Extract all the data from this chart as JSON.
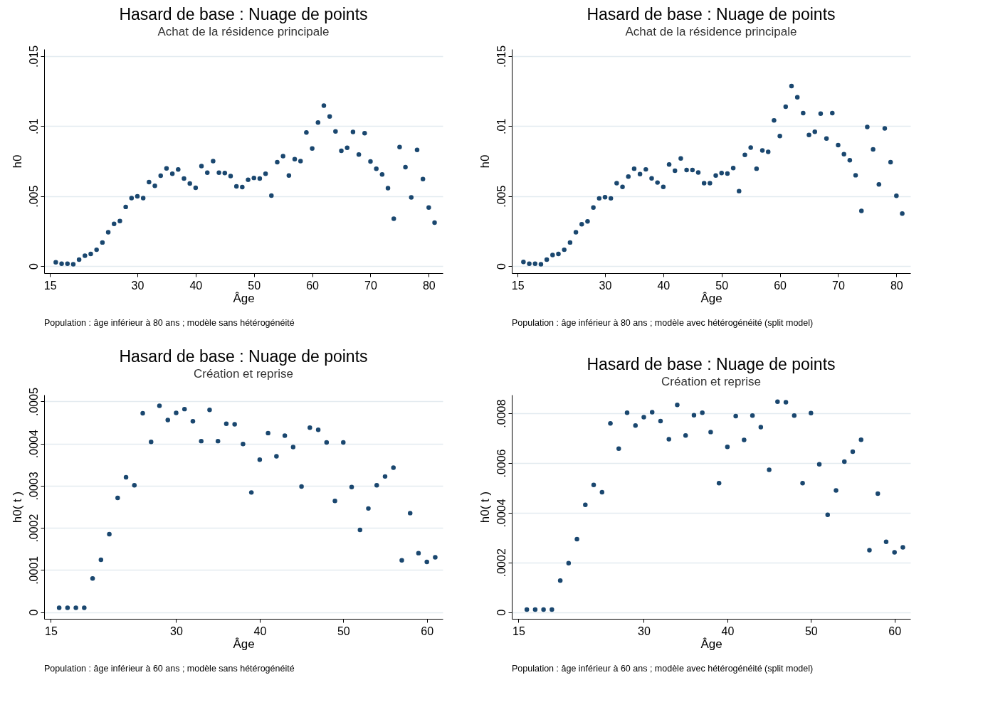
{
  "chart_data": [
    {
      "type": "scatter",
      "title": "Hasard de base : Nuage de points",
      "subtitle": "Achat de la résidence principale",
      "xlabel": "Âge",
      "ylabel": "h0",
      "annotations": [
        "Population : âge inférieur à 80 ans ; modèle sans hétérogénéité"
      ],
      "marker": "circle",
      "grid": "y",
      "xlim": [
        14,
        82.4
      ],
      "xticks": [
        15,
        30,
        40,
        50,
        60,
        70,
        80
      ],
      "ylim": [
        -0.0005,
        0.0155
      ],
      "yticks": [
        {
          "value": 0,
          "label": "0"
        },
        {
          "value": 0.005,
          "label": ".005"
        },
        {
          "value": 0.01,
          "label": ".01"
        },
        {
          "value": 0.015,
          "label": ".015"
        }
      ],
      "x": [
        16,
        17,
        18,
        19,
        20,
        21,
        22,
        23,
        24,
        25,
        26,
        27,
        28,
        29,
        30,
        31,
        32,
        33,
        34,
        35,
        36,
        37,
        38,
        39,
        40,
        41,
        42,
        43,
        44,
        45,
        46,
        47,
        48,
        49,
        50,
        51,
        52,
        53,
        54,
        55,
        56,
        57,
        58,
        59,
        60,
        61,
        62,
        63,
        64,
        65,
        66,
        67,
        68,
        69,
        70,
        71,
        72,
        73,
        74,
        75,
        76,
        77,
        78,
        79,
        80,
        81
      ],
      "series": [
        {
          "color": "#1a476f",
          "values": [
            0.00027,
            0.00017,
            0.00017,
            0.00013,
            0.00047,
            0.00074,
            0.00087,
            0.00117,
            0.00169,
            0.00242,
            0.00302,
            0.00322,
            0.00423,
            0.00486,
            0.00499,
            0.00486,
            0.006,
            0.00573,
            0.00646,
            0.00698,
            0.0066,
            0.0069,
            0.00625,
            0.0059,
            0.0056,
            0.00715,
            0.00668,
            0.0075,
            0.00668,
            0.00665,
            0.00643,
            0.0057,
            0.00565,
            0.00617,
            0.0063,
            0.00625,
            0.0066,
            0.00504,
            0.00742,
            0.00785,
            0.00647,
            0.00764,
            0.0075,
            0.00954,
            0.0084,
            0.01026,
            0.01146,
            0.01069,
            0.00962,
            0.00824,
            0.00845,
            0.00958,
            0.00797,
            0.00949,
            0.00747,
            0.00695,
            0.00655,
            0.00557,
            0.00338,
            0.0085,
            0.00707,
            0.00491,
            0.0083,
            0.00622,
            0.00418,
            0.00311
          ]
        }
      ]
    },
    {
      "type": "scatter",
      "title": "Hasard de base : Nuage de points",
      "subtitle": "Achat de la résidence principale",
      "xlabel": "Âge",
      "ylabel": "h0",
      "annotations": [
        "Population : âge inférieur à 80 ans ; modèle avec hétérogénéité (split model)"
      ],
      "marker": "circle",
      "grid": "y",
      "xlim": [
        14,
        82.4
      ],
      "xticks": [
        15,
        30,
        40,
        50,
        60,
        70,
        80
      ],
      "ylim": [
        -0.0005,
        0.0155
      ],
      "yticks": [
        {
          "value": 0,
          "label": "0"
        },
        {
          "value": 0.005,
          "label": ".005"
        },
        {
          "value": 0.01,
          "label": ".01"
        },
        {
          "value": 0.015,
          "label": ".015"
        }
      ],
      "x": [
        16,
        17,
        18,
        19,
        20,
        21,
        22,
        23,
        24,
        25,
        26,
        27,
        28,
        29,
        30,
        31,
        32,
        33,
        34,
        35,
        36,
        37,
        38,
        39,
        40,
        41,
        42,
        43,
        44,
        45,
        46,
        47,
        48,
        49,
        50,
        51,
        52,
        53,
        54,
        55,
        56,
        57,
        58,
        59,
        60,
        61,
        62,
        63,
        64,
        65,
        66,
        67,
        68,
        69,
        70,
        71,
        72,
        73,
        74,
        75,
        76,
        77,
        78,
        79,
        80,
        81
      ],
      "series": [
        {
          "color": "#1a476f",
          "values": [
            0.0003,
            0.00017,
            0.00017,
            0.00013,
            0.00047,
            0.00079,
            0.00087,
            0.00117,
            0.00169,
            0.00242,
            0.00299,
            0.0032,
            0.00419,
            0.00484,
            0.00492,
            0.00484,
            0.00592,
            0.00566,
            0.00639,
            0.00696,
            0.00657,
            0.00691,
            0.00627,
            0.00597,
            0.00566,
            0.00726,
            0.00682,
            0.00769,
            0.00687,
            0.00687,
            0.00669,
            0.00592,
            0.00592,
            0.00647,
            0.00665,
            0.00661,
            0.00701,
            0.00536,
            0.00794,
            0.00847,
            0.00696,
            0.00826,
            0.00816,
            0.01041,
            0.00929,
            0.01139,
            0.01286,
            0.01206,
            0.01093,
            0.00937,
            0.00959,
            0.01089,
            0.00911,
            0.01093,
            0.00864,
            0.00799,
            0.00756,
            0.00649,
            0.00394,
            0.00994,
            0.00834,
            0.00584,
            0.00984,
            0.00742,
            0.00502,
            0.00375
          ]
        }
      ]
    },
    {
      "type": "scatter",
      "title": "Hasard de base : Nuage de points",
      "subtitle": "Création et reprise",
      "xlabel": "Âge",
      "ylabel": "h0( t )",
      "annotations": [
        "Population : âge inférieur à 60 ans ; modèle sans hétérogénéité"
      ],
      "marker": "circle",
      "grid": "y",
      "xlim": [
        14.2,
        61.9
      ],
      "xticks": [
        15,
        30,
        40,
        50,
        60
      ],
      "ylim": [
        -1.6e-05,
        0.000516
      ],
      "yticks": [
        {
          "value": 0,
          "label": "0"
        },
        {
          "value": 0.0001,
          "label": ".0001"
        },
        {
          "value": 0.0002,
          "label": ".0002"
        },
        {
          "value": 0.0003,
          "label": ".0003"
        },
        {
          "value": 0.0004,
          "label": ".0004"
        },
        {
          "value": 0.0005,
          "label": ".0005"
        }
      ],
      "x": [
        16,
        17,
        18,
        19,
        20,
        21,
        22,
        23,
        24,
        25,
        26,
        27,
        28,
        29,
        30,
        31,
        32,
        33,
        34,
        35,
        36,
        37,
        38,
        39,
        40,
        41,
        42,
        43,
        44,
        45,
        46,
        47,
        48,
        49,
        50,
        51,
        52,
        53,
        54,
        55,
        56,
        57,
        58,
        59,
        60,
        61
      ],
      "series": [
        {
          "color": "#1a476f",
          "values": [
            1e-05,
            1e-05,
            1e-05,
            1e-05,
            8e-05,
            0.000124,
            0.000185,
            0.000271,
            0.00032,
            0.000301,
            0.000472,
            0.000404,
            0.00049,
            0.000456,
            0.000473,
            0.000482,
            0.000453,
            0.000406,
            0.00048,
            0.000406,
            0.000447,
            0.000446,
            0.000399,
            0.000284,
            0.000362,
            0.000425,
            0.00037,
            0.000419,
            0.000392,
            0.000298,
            0.000438,
            0.000433,
            0.000403,
            0.000264,
            0.000403,
            0.000297,
            0.000195,
            0.000246,
            0.000301,
            0.000322,
            0.000343,
            0.000123,
            0.000235,
            0.00014,
            0.000119,
            0.00013
          ]
        }
      ]
    },
    {
      "type": "scatter",
      "title": "Hasard de base : Nuage de points",
      "subtitle": "Création et reprise",
      "xlabel": "Âge",
      "ylabel": "h0( t )",
      "annotations": [
        "Population : âge inférieur à 60 ans ; modèle avec hétérogénéité (split model)"
      ],
      "marker": "circle",
      "grid": "y",
      "xlim": [
        14.2,
        61.9
      ],
      "xticks": [
        15,
        30,
        40,
        50,
        60
      ],
      "ylim": [
        -2.7e-05,
        0.000875
      ],
      "yticks": [
        {
          "value": 0,
          "label": "0"
        },
        {
          "value": 0.0002,
          "label": ".0002"
        },
        {
          "value": 0.0004,
          "label": ".0004"
        },
        {
          "value": 0.0006,
          "label": ".0006"
        },
        {
          "value": 0.0008,
          "label": ".0008"
        }
      ],
      "x": [
        16,
        17,
        18,
        19,
        20,
        21,
        22,
        23,
        24,
        25,
        26,
        27,
        28,
        29,
        30,
        31,
        32,
        33,
        34,
        35,
        36,
        37,
        38,
        39,
        40,
        41,
        42,
        43,
        44,
        45,
        46,
        47,
        48,
        49,
        50,
        51,
        52,
        53,
        54,
        55,
        56,
        57,
        58,
        59,
        60,
        61
      ],
      "series": [
        {
          "color": "#1a476f",
          "values": [
            1e-05,
            1e-05,
            1e-05,
            1e-05,
            0.000127,
            0.000197,
            0.000294,
            0.000432,
            0.000512,
            0.000483,
            0.00076,
            0.000658,
            0.000803,
            0.000751,
            0.000785,
            0.000805,
            0.000769,
            0.000696,
            0.000834,
            0.000711,
            0.000793,
            0.000803,
            0.000725,
            0.000519,
            0.000665,
            0.000789,
            0.000693,
            0.000791,
            0.000745,
            0.000573,
            0.000847,
            0.000845,
            0.000791,
            0.000519,
            0.000801,
            0.000595,
            0.000392,
            0.00049,
            0.000606,
            0.000646,
            0.000694,
            0.000249,
            0.000477,
            0.000283,
            0.000241,
            0.000261
          ]
        }
      ]
    }
  ]
}
